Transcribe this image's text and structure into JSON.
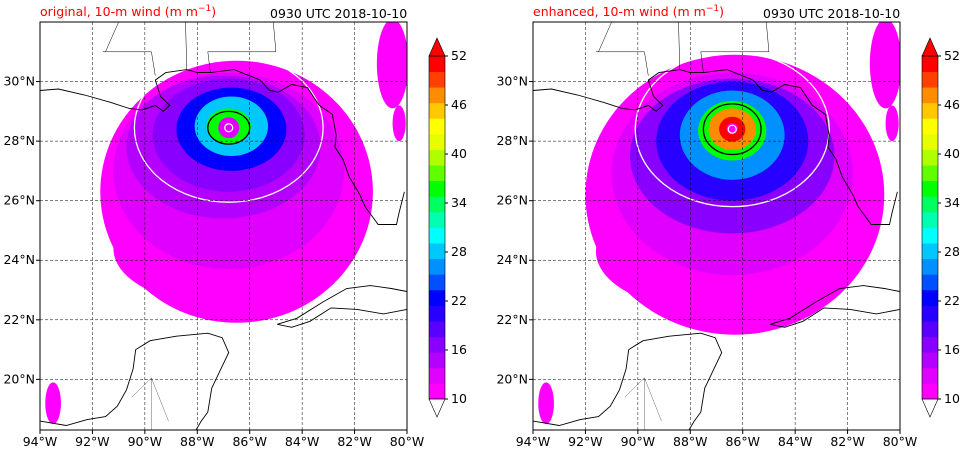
{
  "panels": [
    {
      "title": "original, 10-m wind (m m",
      "title_sup": "−1",
      "title_close": ")",
      "time": "0930 UTC 2018-10-10"
    },
    {
      "title": "enhanced, 10-m wind (m m",
      "title_sup": "−1",
      "title_close": ")",
      "time": "0930 UTC 2018-10-10"
    }
  ],
  "map": {
    "lon_range": [
      -94,
      -80
    ],
    "lat_range": [
      18.3,
      32
    ],
    "lon_ticks": [
      -94,
      -92,
      -90,
      -88,
      -86,
      -84,
      -82,
      -80
    ],
    "lon_labels": [
      "94°W",
      "92°W",
      "90°W",
      "88°W",
      "86°W",
      "84°W",
      "82°W",
      "80°W"
    ],
    "lat_ticks": [
      20,
      22,
      24,
      26,
      28,
      30
    ],
    "lat_labels": [
      "20°N",
      "22°N",
      "24°N",
      "26°N",
      "28°N",
      "30°N"
    ]
  },
  "colorbar": {
    "levels": [
      10,
      12,
      14,
      16,
      18,
      20,
      22,
      24,
      26,
      28,
      30,
      32,
      34,
      36,
      38,
      40,
      42,
      44,
      46,
      48,
      50,
      52
    ],
    "tick_labels": [
      "10",
      "16",
      "22",
      "28",
      "34",
      "40",
      "46",
      "52"
    ],
    "colors": [
      "#ff00ff",
      "#e000ff",
      "#b400ff",
      "#8a00ff",
      "#5a00ff",
      "#2800ff",
      "#0000ff",
      "#0050ff",
      "#0090ff",
      "#00c8ff",
      "#00ffff",
      "#00ffb0",
      "#00ff60",
      "#00ff00",
      "#60ff00",
      "#b0ff00",
      "#e6ff00",
      "#ffff00",
      "#ffc800",
      "#ff8c00",
      "#ff4000",
      "#ff0000"
    ],
    "extend": "both"
  },
  "style": {
    "land_line": "#000000",
    "grid_line": "#000000",
    "contour_outer": "#ffffff",
    "contour_inner": "#000000"
  }
}
